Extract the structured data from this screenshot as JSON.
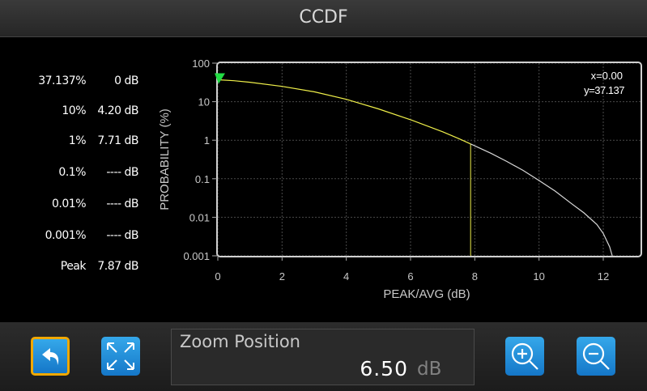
{
  "window": {
    "title": "CCDF"
  },
  "stats": [
    {
      "pct": "37.137%",
      "db": "0 dB"
    },
    {
      "pct": "10%",
      "db": "4.20 dB"
    },
    {
      "pct": "1%",
      "db": "7.71 dB"
    },
    {
      "pct": "0.1%",
      "db": "---- dB"
    },
    {
      "pct": "0.01%",
      "db": "---- dB"
    },
    {
      "pct": "0.001%",
      "db": "---- dB"
    },
    {
      "pct": "Peak",
      "db": "7.87 dB"
    }
  ],
  "readout": {
    "x": "x=0.00",
    "y": "y=37.137"
  },
  "chart_data": {
    "type": "line",
    "xlabel": "PEAK/AVG (dB)",
    "ylabel": "PROBABILITY (%)",
    "xlim": [
      0,
      13
    ],
    "ylim": [
      0.001,
      100
    ],
    "yscale": "log",
    "xticks": [
      "0",
      "2",
      "4",
      "6",
      "8",
      "10",
      "12"
    ],
    "yticks": [
      "0.001",
      "0.01",
      "0.1",
      "1",
      "10",
      "100"
    ],
    "grid": true,
    "series": [
      {
        "color": "#f0f04a",
        "x": [
          0,
          0.5,
          1,
          2,
          3,
          4,
          5,
          6,
          7,
          7.5,
          7.87
        ],
        "y": [
          37.137,
          35,
          32,
          25,
          18,
          11.5,
          6.5,
          3.4,
          1.65,
          1.1,
          0.8
        ]
      },
      {
        "color": "#d8d8d8",
        "x": [
          7.87,
          8.5,
          9,
          9.5,
          10,
          10.5,
          11,
          11.4,
          11.8,
          12.0,
          12.2,
          12.28
        ],
        "y": [
          0.8,
          0.46,
          0.28,
          0.165,
          0.09,
          0.048,
          0.023,
          0.013,
          0.0065,
          0.0038,
          0.0017,
          0.001
        ]
      }
    ],
    "marker": {
      "x": 0,
      "y": 37.137,
      "color": "#22dd44"
    },
    "cursor_line": {
      "x": 7.87,
      "color": "#f0f04a"
    }
  },
  "zoom": {
    "label": "Zoom Position",
    "value": "6.50",
    "unit": "dB"
  },
  "icons": {
    "back": "back-arrow-icon",
    "fit": "expand-arrows-icon",
    "zoom_in": "zoom-in-icon",
    "zoom_out": "zoom-out-icon"
  }
}
